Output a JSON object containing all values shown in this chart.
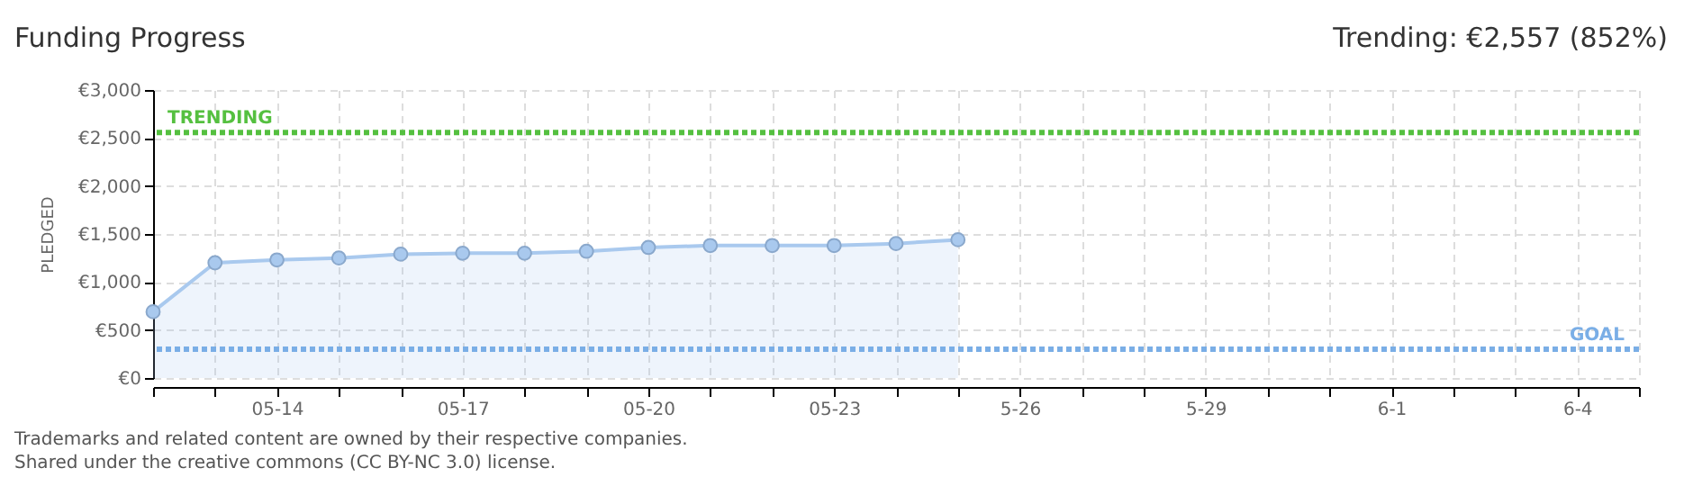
{
  "chart_data": {
    "type": "area",
    "title": "Funding Progress",
    "subtitle": "Trending: €2,557 (852%)",
    "ylabel": "PLEDGED",
    "x": [
      "--05-12",
      "--05-13",
      "--05-14",
      "--05-15",
      "--05-16",
      "--05-17",
      "--05-18",
      "--05-19",
      "--05-20",
      "--05-21",
      "--05-22",
      "--05-23",
      "--05-24",
      "--05-25"
    ],
    "series": [
      {
        "color": "#a9c9ee",
        "values": [
          690,
          1200,
          1230,
          1250,
          1290,
          1300,
          1300,
          1320,
          1360,
          1380,
          1380,
          1380,
          1400,
          1440
        ]
      }
    ],
    "marker": "circle",
    "grid": true,
    "xlim": [
      "--05-12",
      "--06-05"
    ],
    "xticks": [
      {
        "value": "--05-12",
        "label": null
      },
      {
        "value": "--05-13",
        "label": null
      },
      {
        "value": "--05-14",
        "label": "05-14"
      },
      {
        "value": "--05-15",
        "label": null
      },
      {
        "value": "--05-16",
        "label": null
      },
      {
        "value": "--05-17",
        "label": "05-17"
      },
      {
        "value": "--05-18",
        "label": null
      },
      {
        "value": "--05-19",
        "label": null
      },
      {
        "value": "--05-20",
        "label": "05-20"
      },
      {
        "value": "--05-21",
        "label": null
      },
      {
        "value": "--05-22",
        "label": null
      },
      {
        "value": "--05-23",
        "label": "05-23"
      },
      {
        "value": "--05-24",
        "label": null
      },
      {
        "value": "--05-25",
        "label": null
      },
      {
        "value": "--05-26",
        "label": "5-26"
      },
      {
        "value": "--05-27",
        "label": null
      },
      {
        "value": "--05-28",
        "label": null
      },
      {
        "value": "--05-29",
        "label": "5-29"
      },
      {
        "value": "--05-30",
        "label": null
      },
      {
        "value": "--05-31",
        "label": null
      },
      {
        "value": "--06-01",
        "label": "6-1"
      },
      {
        "value": "--06-02",
        "label": null
      },
      {
        "value": "--06-03",
        "label": null
      },
      {
        "value": "--06-04",
        "label": "6-4"
      },
      {
        "value": "--06-05",
        "label": null
      }
    ],
    "ylim": [
      0,
      3000
    ],
    "yticks": [
      {
        "value": 0,
        "label": "€0"
      },
      {
        "value": 500,
        "label": "€500"
      },
      {
        "value": 1000,
        "label": "€1,000"
      },
      {
        "value": 1500,
        "label": "€1,500"
      },
      {
        "value": 2000,
        "label": "€2,000"
      },
      {
        "value": 2500,
        "label": "€2,500"
      },
      {
        "value": 3000,
        "label": "€3,000"
      }
    ],
    "ref_lines": [
      {
        "axis": "y",
        "value": 2557,
        "label": "TRENDING",
        "color": "#55c040",
        "line_style": "dotted"
      },
      {
        "axis": "y",
        "value": 300,
        "label": "GOAL",
        "color": "#7aaee6",
        "line_style": "dotted"
      }
    ],
    "annotations": [
      "Trademarks and related content are owned by their respective companies.",
      "Shared under the creative commons (CC BY-NC 3.0) license."
    ]
  }
}
